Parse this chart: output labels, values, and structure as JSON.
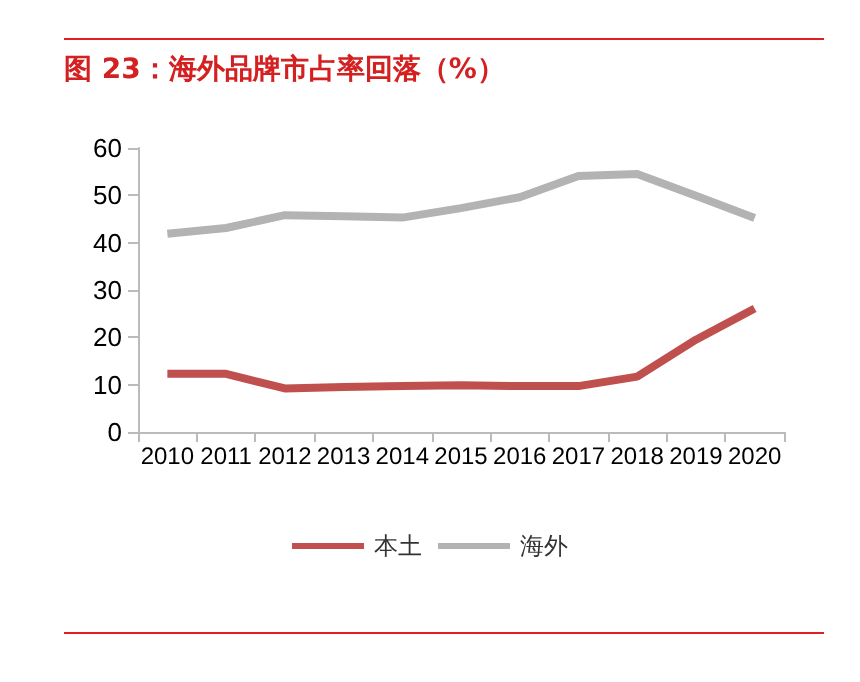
{
  "chart_data": {
    "type": "line",
    "title": "图 23：海外品牌市占率回落（%）",
    "categories": [
      "2010",
      "2011",
      "2012",
      "2013",
      "2014",
      "2015",
      "2016",
      "2017",
      "2018",
      "2019",
      "2020"
    ],
    "series": [
      {
        "name": "本土",
        "color": "#c0504d",
        "values": [
          12.3,
          12.3,
          9.2,
          9.5,
          9.7,
          9.9,
          9.7,
          9.7,
          11.7,
          19.5,
          26.1
        ]
      },
      {
        "name": "海外",
        "color": "#b3b3b3",
        "values": [
          41.9,
          43.1,
          45.8,
          45.6,
          45.3,
          47.3,
          49.6,
          54.1,
          54.5,
          49.9,
          45.2
        ]
      }
    ],
    "ylim": [
      0,
      60
    ],
    "yticks": [
      0,
      10,
      20,
      30,
      40,
      50,
      60
    ],
    "grid": false,
    "legend": "bottom",
    "marker": "none",
    "line_style": "solid"
  }
}
